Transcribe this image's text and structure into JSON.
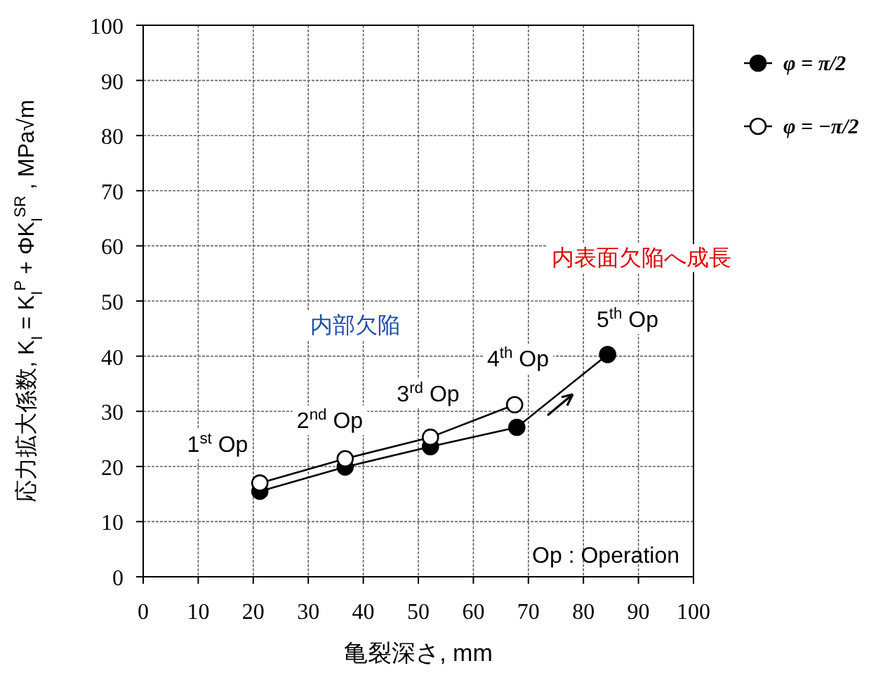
{
  "chart_data": {
    "type": "line",
    "xlabel": "亀裂深さ, mm",
    "ylabel": "応力拡大係数, K$_{I}$ = K$_{I}$$^{P}$ + ΦK$_{I}$$^{SR}$ , MPa√m",
    "xlim": [
      0,
      100
    ],
    "ylim": [
      0,
      100
    ],
    "xticks": [
      0,
      10,
      20,
      30,
      40,
      50,
      60,
      70,
      80,
      90,
      100
    ],
    "yticks": [
      0,
      10,
      20,
      30,
      40,
      50,
      60,
      70,
      80,
      90,
      100
    ],
    "grid": true,
    "legend": "right",
    "series": [
      {
        "name": "φ = π/2",
        "color": "#000000",
        "marker": "circle",
        "x": [
          21.2,
          36.7,
          52.2,
          67.9,
          84.4
        ],
        "values": [
          15.5,
          19.9,
          23.6,
          27.1,
          40.3
        ]
      },
      {
        "name": "φ = −π/2",
        "color": "#000000",
        "marker": "open circle",
        "x": [
          21.2,
          36.7,
          52.2,
          67.5
        ],
        "values": [
          17.0,
          21.4,
          25.3,
          31.2
        ]
      }
    ],
    "annotations": [
      "1$^{st}$ Op",
      "2$^{nd}$ Op",
      "3$^{rd}$ Op",
      "4$^{th}$ Op",
      "5$^{th}$ Op",
      "内部欠陥",
      "内表面欠陥へ成長",
      "Op : Operation"
    ]
  }
}
